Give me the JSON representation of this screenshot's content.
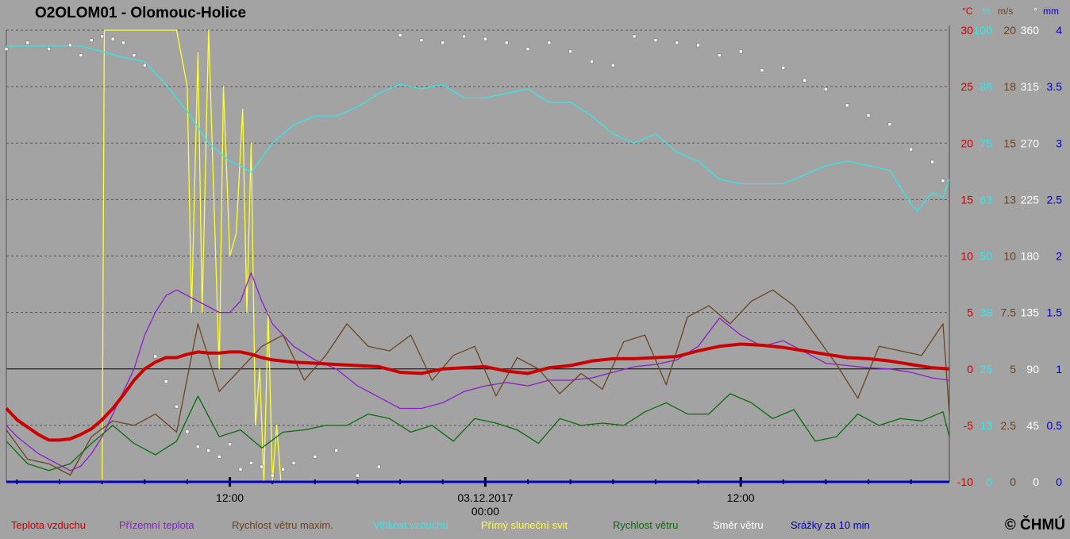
{
  "title": "O2OLOM01 - Olomouc-Holice",
  "copyright": "© ČHMÚ",
  "colors": {
    "background": "#a3a3a3",
    "temperature": "#cc0000",
    "ground_temperature": "#8a1fc8",
    "wind_gust": "#6b4420",
    "humidity": "#32e8e8",
    "sunshine": "#ffff33",
    "wind_speed": "#0a6d0a",
    "wind_direction": "#ffffff",
    "precipitation": "#0000c0"
  },
  "axis_units": {
    "temperature": "°C",
    "humidity": "%",
    "wind": "m/s",
    "direction": "°",
    "precipitation": "mm"
  },
  "right_axes": {
    "temperature": [
      "30",
      "25",
      "20",
      "15",
      "10",
      "5",
      "0",
      "-5",
      "-10"
    ],
    "humidity": [
      "100",
      "88",
      "75",
      "63",
      "50",
      "38",
      "25",
      "13",
      "0"
    ],
    "wind": [
      "20",
      "18",
      "15",
      "13",
      "10",
      "7.5",
      "5",
      "2.5",
      "0"
    ],
    "direction": [
      "360",
      "315",
      "270",
      "225",
      "180",
      "135",
      "90",
      "45",
      "0"
    ],
    "precipitation": [
      "4",
      "3.5",
      "3",
      "2.5",
      "2",
      "1.5",
      "1",
      "0.5",
      "0"
    ]
  },
  "x_labels": [
    {
      "label": "12:00",
      "hour": 12
    },
    {
      "label": "03.12.2017",
      "label2": "00:00",
      "hour": 24
    },
    {
      "label": "12:00",
      "hour": 36
    }
  ],
  "legend": [
    {
      "label": "Teplota vzduchu",
      "color_key": "temperature"
    },
    {
      "label": "Přízemní teplota",
      "color_key": "ground_temperature"
    },
    {
      "label": "Rychlost větru maxim.",
      "color_key": "wind_gust"
    },
    {
      "label": "Vlhkost vzduchu",
      "color_key": "humidity"
    },
    {
      "label": "Přímý sluneční svit",
      "color_key": "sunshine"
    },
    {
      "label": "Rychlost větru",
      "color_key": "wind_speed"
    },
    {
      "label": "Směr větru",
      "color_key": "wind_direction"
    },
    {
      "label": "Srážky za 10 min",
      "color_key": "precipitation"
    }
  ],
  "chart_data": {
    "type": "line",
    "x_unit": "hours since 02.12.2017 00:00",
    "xlim": [
      1.5,
      45.8
    ],
    "ylim": [
      -10,
      30
    ],
    "grid": true,
    "series": [
      {
        "name": "Teplota vzduchu",
        "axis": "temperature",
        "color_key": "temperature",
        "x": [
          1.5,
          2,
          3,
          3.5,
          4,
          4.5,
          5,
          5.5,
          6,
          6.5,
          7,
          7.5,
          8,
          8.5,
          9,
          9.5,
          10,
          10.5,
          11,
          11.5,
          12,
          12.5,
          13,
          13.5,
          14,
          15,
          16,
          17,
          18,
          19,
          20,
          21,
          22,
          23,
          24,
          25,
          26,
          27,
          28,
          29,
          30,
          31,
          32,
          33,
          34,
          35,
          36,
          37,
          38,
          39,
          40,
          41,
          42,
          43,
          44,
          45,
          45.8
        ],
        "y": [
          -3.5,
          -4.5,
          -5.8,
          -6.3,
          -6.3,
          -6.2,
          -5.8,
          -5.3,
          -4.5,
          -3.5,
          -2.3,
          -1,
          0,
          0.6,
          1,
          1,
          1.3,
          1.5,
          1.4,
          1.4,
          1.5,
          1.5,
          1.3,
          1,
          0.8,
          0.6,
          0.5,
          0.4,
          0.3,
          0.2,
          -0.3,
          -0.4,
          0,
          0.1,
          0.2,
          -0.2,
          -0.4,
          0.1,
          0.3,
          0.7,
          0.9,
          0.9,
          1,
          1.1,
          1.6,
          2,
          2.2,
          2.1,
          1.9,
          1.6,
          1.3,
          1.0,
          0.9,
          0.7,
          0.4,
          0.1,
          0.0
        ]
      },
      {
        "name": "Přízemní teplota",
        "axis": "temperature",
        "color_key": "ground_temperature",
        "x": [
          1.5,
          2,
          3,
          3.5,
          4,
          4.5,
          5,
          5.5,
          6,
          6.5,
          7,
          7.5,
          8,
          8.5,
          9,
          9.5,
          10,
          10.5,
          11,
          11.5,
          12,
          12.5,
          13,
          13.5,
          14,
          14.5,
          15,
          16,
          17,
          18,
          19,
          20,
          21,
          22,
          23,
          24,
          25,
          26,
          27,
          28,
          29,
          30,
          31,
          32,
          33,
          34,
          35,
          36,
          37,
          38,
          39,
          40,
          41,
          42,
          43,
          44,
          45,
          45.8
        ],
        "y": [
          -5,
          -6,
          -7.5,
          -8,
          -8.5,
          -9,
          -8.6,
          -7.5,
          -6,
          -4,
          -2,
          0,
          3,
          5,
          6.5,
          7,
          6.5,
          6,
          5.5,
          5,
          5,
          6,
          8.5,
          6,
          4,
          3,
          2,
          0.8,
          0,
          -1.5,
          -2.5,
          -3.5,
          -3.5,
          -3,
          -2,
          -1.5,
          -1.2,
          -1.5,
          -1,
          -1,
          -0.8,
          -0.3,
          0.2,
          0.4,
          0.8,
          2,
          4.5,
          3,
          2,
          2.5,
          1.5,
          0.5,
          0.3,
          0.1,
          0.0,
          -0.3,
          -0.8,
          -1
        ]
      },
      {
        "name": "Rychlost větru maxim.",
        "axis": "wind",
        "color_key": "wind_gust",
        "x": [
          1.5,
          2.5,
          3.5,
          4.5,
          5.5,
          6.5,
          7.5,
          8.5,
          9.5,
          10.5,
          11.5,
          12.5,
          13.5,
          14.5,
          15.5,
          16.5,
          17.5,
          18.5,
          19.5,
          20.5,
          21.5,
          22.5,
          23.5,
          24.5,
          25.5,
          26.5,
          27.5,
          28.5,
          29.5,
          30.5,
          31.5,
          32.5,
          33.5,
          34.5,
          35.5,
          36.5,
          37.5,
          38.5,
          39.5,
          40.5,
          41.5,
          42.5,
          43.5,
          44.5,
          45.5,
          45.8
        ],
        "y": [
          2.3,
          1,
          0.8,
          0.3,
          2.0,
          2.7,
          2.5,
          3.0,
          2.2,
          7.0,
          4.0,
          5.0,
          6.0,
          6.5,
          4.5,
          5.6,
          7.0,
          6.0,
          5.8,
          6.5,
          4.5,
          5.6,
          6.0,
          3.8,
          5.5,
          5.0,
          3.9,
          4.8,
          4.1,
          6.2,
          6.5,
          4.3,
          7.3,
          7.8,
          7.0,
          8.0,
          8.5,
          7.8,
          6.5,
          5.2,
          3.7,
          6.0,
          5.8,
          5.6,
          7.0,
          3.0
        ]
      },
      {
        "name": "Vlhkost vzduchu",
        "axis": "humidity",
        "color_key": "humidity",
        "x": [
          1.5,
          3,
          5,
          7,
          8,
          9,
          10,
          11,
          12,
          12.5,
          13,
          14,
          15,
          16,
          17,
          18,
          19,
          20,
          21,
          22,
          23,
          24,
          25,
          26,
          27,
          28,
          29,
          30,
          31,
          32,
          33,
          34,
          35,
          36,
          37,
          38,
          39,
          40,
          41,
          42,
          43,
          44,
          44.3,
          45,
          45.5,
          45.8
        ],
        "y": [
          96.5,
          96.5,
          96.5,
          94,
          93,
          88,
          82,
          75,
          71,
          70,
          68.5,
          75,
          79,
          81,
          81,
          83,
          86,
          88,
          87,
          88,
          85,
          85,
          86,
          87,
          84,
          84,
          81,
          77,
          75,
          77,
          73,
          71,
          67,
          66,
          66,
          66,
          68,
          70,
          71,
          70,
          69,
          61.5,
          60,
          64,
          63,
          67
        ]
      },
      {
        "name": "Přímý sluneční svit",
        "axis": "precipitation",
        "color_key": "sunshine",
        "x": [
          1.5,
          5.5,
          6.0,
          6.1,
          7.0,
          8.0,
          9.5,
          10.0,
          10.2,
          10.5,
          10.7,
          11.0,
          11.5,
          11.7,
          12.0,
          12.3,
          12.6,
          12.8,
          13.0,
          13.2,
          13.4,
          13.6,
          13.8,
          14.0,
          14.2,
          14.4,
          14.6,
          45.8
        ],
        "y": [
          0,
          0,
          0,
          4,
          4,
          4,
          4,
          3.5,
          1.5,
          3.8,
          1.5,
          4,
          1,
          3.5,
          2,
          2.2,
          3.3,
          1.5,
          3,
          0.5,
          1,
          0,
          1.5,
          0,
          0.5,
          0,
          0,
          0
        ]
      },
      {
        "name": "Rychlost větru",
        "axis": "wind",
        "color_key": "wind_speed",
        "x": [
          1.5,
          2.5,
          3.5,
          4.5,
          5.5,
          6.5,
          7.5,
          8.5,
          9.5,
          10.5,
          11.5,
          12.5,
          13.5,
          14.5,
          15.5,
          16.5,
          17.5,
          18.5,
          19.5,
          20.5,
          21.5,
          22.5,
          23.5,
          24.5,
          25.5,
          26.5,
          27.5,
          28.5,
          29.5,
          30.5,
          31.5,
          32.5,
          33.5,
          34.5,
          35.5,
          36.5,
          37.5,
          38.5,
          39.5,
          40.5,
          41.5,
          42.5,
          43.5,
          44.5,
          45.5,
          45.8
        ],
        "y": [
          1.8,
          0.8,
          0.5,
          0.8,
          1.7,
          2.5,
          1.7,
          1.2,
          1.8,
          3.8,
          2.0,
          2.3,
          1.5,
          2.2,
          2.3,
          2.5,
          2.5,
          3.0,
          2.8,
          2.2,
          2.5,
          1.8,
          2.8,
          2.6,
          2.3,
          1.7,
          2.8,
          2.5,
          2.6,
          2.5,
          3.1,
          3.5,
          3.0,
          3.0,
          3.9,
          3.5,
          2.8,
          3.2,
          1.8,
          2.0,
          3.0,
          2.5,
          2.8,
          2.7,
          3.1,
          2
        ]
      },
      {
        "name": "Směr větru",
        "axis": "direction",
        "color_key": "wind_direction",
        "x": [
          1.5,
          2.5,
          3.5,
          4.5,
          5,
          5.5,
          6,
          6.5,
          7,
          7.5,
          8,
          8.5,
          9,
          9.5,
          10,
          10.5,
          11,
          11.5,
          12,
          12.5,
          13,
          13.5,
          14,
          14.5,
          15,
          16,
          17,
          18,
          19,
          20,
          21,
          22,
          23,
          24,
          25,
          26,
          27,
          28,
          29,
          30,
          31,
          32,
          33,
          34,
          35,
          36,
          37,
          38,
          39,
          40,
          41,
          42,
          43,
          44,
          45,
          45.5
        ],
        "y": [
          345,
          350,
          345,
          348,
          340,
          352,
          355,
          353,
          350,
          340,
          332,
          100,
          80,
          60,
          40,
          28,
          25,
          20,
          30,
          10,
          15,
          12,
          5,
          10,
          15,
          20,
          25,
          5,
          12,
          356,
          352,
          350,
          355,
          353,
          350,
          345,
          350,
          343,
          335,
          332,
          355,
          352,
          350,
          348,
          340,
          343,
          328,
          330,
          320,
          313,
          300,
          292,
          285,
          265,
          255,
          240
        ]
      },
      {
        "name": "Srážky za 10 min",
        "axis": "precipitation",
        "color_key": "precipitation",
        "x": [
          1.5,
          45.8
        ],
        "y": [
          0,
          0
        ]
      }
    ]
  }
}
